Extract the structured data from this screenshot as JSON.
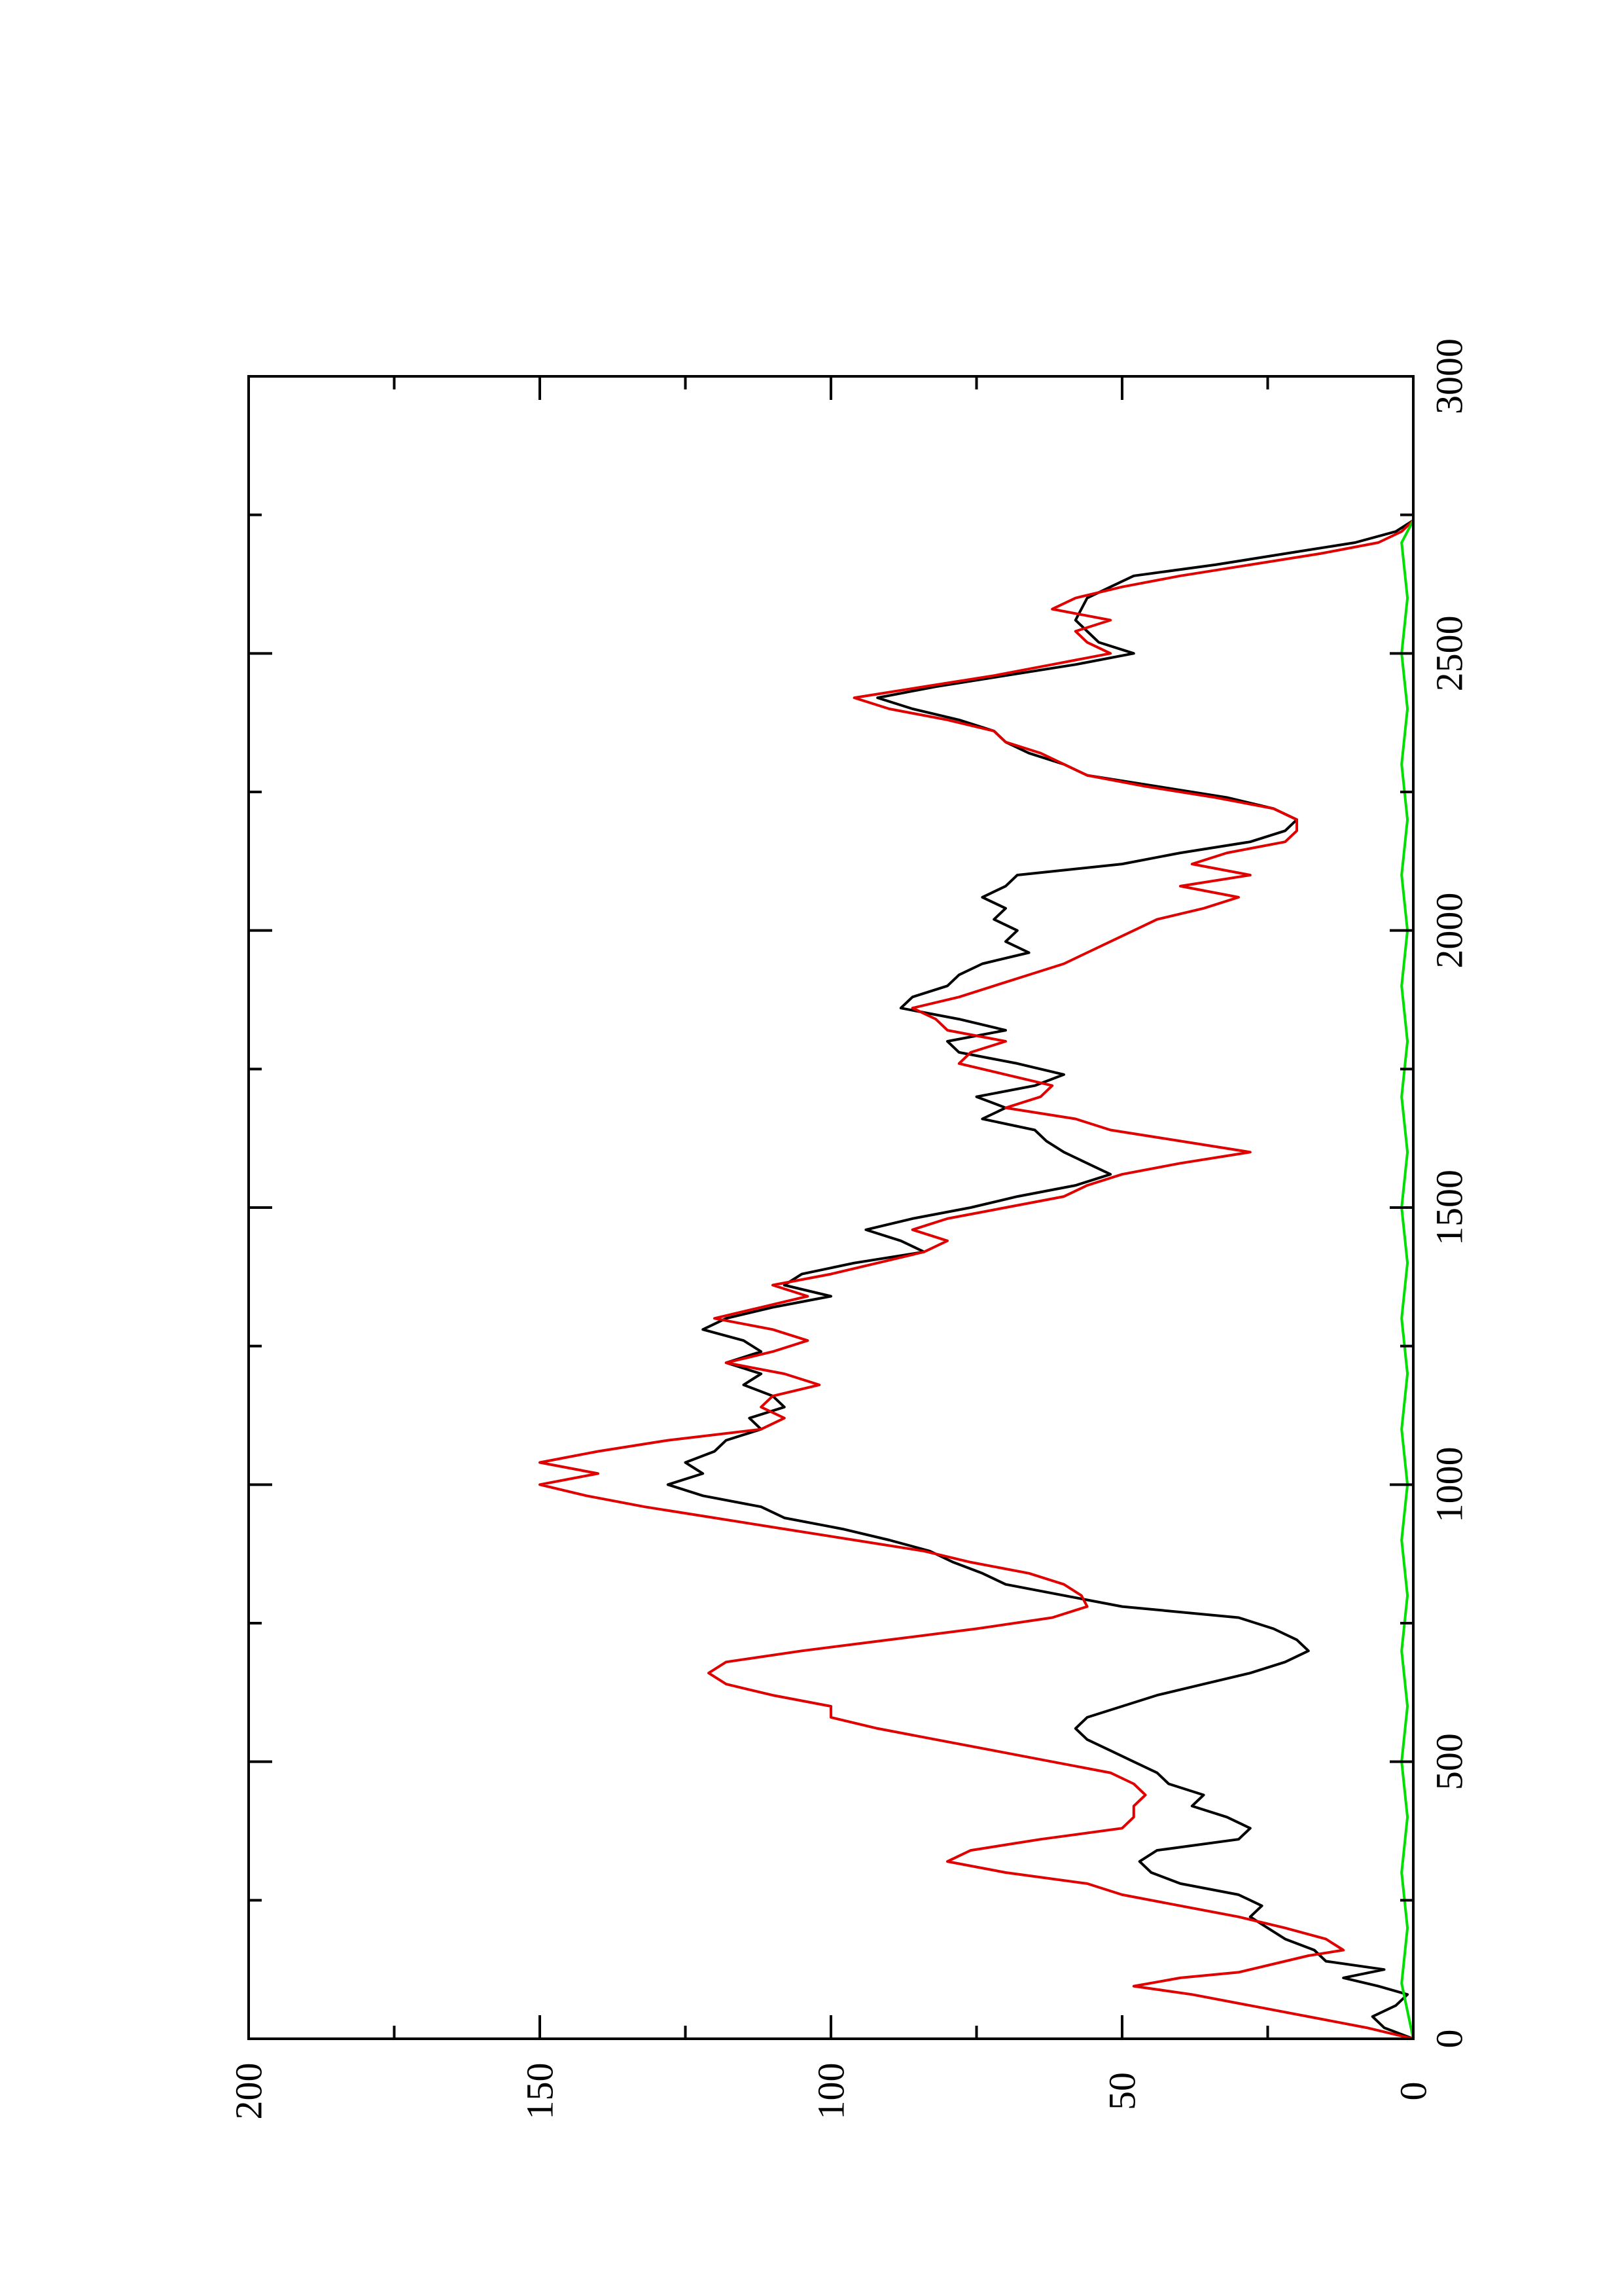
{
  "chart_data": {
    "type": "line",
    "title": "",
    "xlabel": "",
    "ylabel": "",
    "xlim": [
      0,
      3000
    ],
    "ylim": [
      0,
      200
    ],
    "x_ticks_major": [
      0,
      500,
      1000,
      1500,
      2000,
      2500,
      3000
    ],
    "x_ticks_minor": [
      250,
      750,
      1250,
      1750,
      2250,
      2750
    ],
    "y_ticks_major": [
      0,
      50,
      100,
      150,
      200
    ],
    "y_ticks_minor": [
      25,
      75,
      125,
      175
    ],
    "x_tick_labels": [
      "0",
      "500",
      "1000",
      "1500",
      "2000",
      "2500",
      "3000"
    ],
    "y_tick_labels": [
      "0",
      "50",
      "100",
      "150",
      "200"
    ],
    "grid": false,
    "legend": "none",
    "rotation": "rotated 90 degrees counter-clockwise on the page",
    "series": [
      {
        "color": "#000000",
        "points": [
          [
            0,
            0
          ],
          [
            20,
            5
          ],
          [
            40,
            7
          ],
          [
            60,
            3
          ],
          [
            80,
            1
          ],
          [
            95,
            6
          ],
          [
            110,
            12
          ],
          [
            125,
            5
          ],
          [
            140,
            15
          ],
          [
            160,
            17
          ],
          [
            180,
            22
          ],
          [
            200,
            25
          ],
          [
            220,
            28
          ],
          [
            240,
            26
          ],
          [
            260,
            30
          ],
          [
            280,
            40
          ],
          [
            300,
            45
          ],
          [
            320,
            47
          ],
          [
            340,
            44
          ],
          [
            360,
            30
          ],
          [
            380,
            28
          ],
          [
            400,
            32
          ],
          [
            420,
            38
          ],
          [
            440,
            36
          ],
          [
            460,
            42
          ],
          [
            480,
            44
          ],
          [
            500,
            48
          ],
          [
            520,
            52
          ],
          [
            540,
            56
          ],
          [
            560,
            58
          ],
          [
            580,
            56
          ],
          [
            600,
            50
          ],
          [
            620,
            44
          ],
          [
            640,
            36
          ],
          [
            660,
            28
          ],
          [
            680,
            22
          ],
          [
            700,
            18
          ],
          [
            720,
            20
          ],
          [
            740,
            24
          ],
          [
            760,
            30
          ],
          [
            780,
            50
          ],
          [
            800,
            60
          ],
          [
            820,
            70
          ],
          [
            840,
            74
          ],
          [
            860,
            79
          ],
          [
            880,
            83
          ],
          [
            900,
            90
          ],
          [
            920,
            98
          ],
          [
            940,
            108
          ],
          [
            960,
            112
          ],
          [
            980,
            122
          ],
          [
            1000,
            128
          ],
          [
            1020,
            122
          ],
          [
            1040,
            125
          ],
          [
            1060,
            120
          ],
          [
            1080,
            118
          ],
          [
            1100,
            112
          ],
          [
            1120,
            114
          ],
          [
            1140,
            108
          ],
          [
            1160,
            110
          ],
          [
            1180,
            115
          ],
          [
            1200,
            112
          ],
          [
            1220,
            118
          ],
          [
            1240,
            112
          ],
          [
            1260,
            115
          ],
          [
            1280,
            122
          ],
          [
            1300,
            118
          ],
          [
            1320,
            110
          ],
          [
            1340,
            100
          ],
          [
            1360,
            108
          ],
          [
            1380,
            105
          ],
          [
            1400,
            96
          ],
          [
            1420,
            84
          ],
          [
            1440,
            88
          ],
          [
            1460,
            94
          ],
          [
            1480,
            86
          ],
          [
            1500,
            76
          ],
          [
            1520,
            68
          ],
          [
            1540,
            58
          ],
          [
            1560,
            52
          ],
          [
            1580,
            56
          ],
          [
            1600,
            60
          ],
          [
            1620,
            63
          ],
          [
            1640,
            65
          ],
          [
            1660,
            74
          ],
          [
            1680,
            70
          ],
          [
            1700,
            75
          ],
          [
            1720,
            65
          ],
          [
            1740,
            60
          ],
          [
            1760,
            68
          ],
          [
            1780,
            78
          ],
          [
            1800,
            80
          ],
          [
            1820,
            70
          ],
          [
            1840,
            78
          ],
          [
            1860,
            88
          ],
          [
            1880,
            86
          ],
          [
            1900,
            80
          ],
          [
            1920,
            78
          ],
          [
            1940,
            74
          ],
          [
            1960,
            66
          ],
          [
            1980,
            70
          ],
          [
            2000,
            68
          ],
          [
            2020,
            72
          ],
          [
            2040,
            70
          ],
          [
            2060,
            74
          ],
          [
            2080,
            70
          ],
          [
            2100,
            68
          ],
          [
            2120,
            50
          ],
          [
            2140,
            40
          ],
          [
            2160,
            28
          ],
          [
            2180,
            22
          ],
          [
            2200,
            20
          ],
          [
            2220,
            24
          ],
          [
            2240,
            32
          ],
          [
            2260,
            44
          ],
          [
            2280,
            56
          ],
          [
            2300,
            60
          ],
          [
            2320,
            66
          ],
          [
            2340,
            70
          ],
          [
            2360,
            72
          ],
          [
            2380,
            78
          ],
          [
            2400,
            86
          ],
          [
            2420,
            92
          ],
          [
            2440,
            82
          ],
          [
            2460,
            70
          ],
          [
            2480,
            58
          ],
          [
            2500,
            48
          ],
          [
            2520,
            54
          ],
          [
            2540,
            56
          ],
          [
            2560,
            58
          ],
          [
            2580,
            57
          ],
          [
            2600,
            56
          ],
          [
            2620,
            52
          ],
          [
            2640,
            48
          ],
          [
            2660,
            34
          ],
          [
            2680,
            22
          ],
          [
            2700,
            10
          ],
          [
            2720,
            3
          ],
          [
            2740,
            0
          ]
        ]
      },
      {
        "color": "#e00000",
        "points": [
          [
            0,
            0
          ],
          [
            20,
            8
          ],
          [
            40,
            18
          ],
          [
            60,
            28
          ],
          [
            80,
            38
          ],
          [
            95,
            48
          ],
          [
            110,
            40
          ],
          [
            120,
            30
          ],
          [
            140,
            22
          ],
          [
            150,
            18
          ],
          [
            160,
            12
          ],
          [
            180,
            15
          ],
          [
            200,
            22
          ],
          [
            220,
            30
          ],
          [
            240,
            40
          ],
          [
            260,
            50
          ],
          [
            280,
            56
          ],
          [
            300,
            70
          ],
          [
            320,
            80
          ],
          [
            340,
            76
          ],
          [
            360,
            64
          ],
          [
            380,
            50
          ],
          [
            400,
            48
          ],
          [
            420,
            48
          ],
          [
            440,
            46
          ],
          [
            460,
            48
          ],
          [
            480,
            52
          ],
          [
            500,
            62
          ],
          [
            520,
            72
          ],
          [
            540,
            82
          ],
          [
            560,
            92
          ],
          [
            580,
            100
          ],
          [
            600,
            100
          ],
          [
            620,
            110
          ],
          [
            640,
            118
          ],
          [
            660,
            121
          ],
          [
            680,
            118
          ],
          [
            700,
            105
          ],
          [
            720,
            90
          ],
          [
            740,
            75
          ],
          [
            760,
            62
          ],
          [
            780,
            56
          ],
          [
            800,
            57
          ],
          [
            820,
            60
          ],
          [
            840,
            66
          ],
          [
            860,
            76
          ],
          [
            880,
            84
          ],
          [
            900,
            96
          ],
          [
            920,
            108
          ],
          [
            940,
            120
          ],
          [
            960,
            132
          ],
          [
            980,
            142
          ],
          [
            1000,
            150
          ],
          [
            1020,
            140
          ],
          [
            1040,
            150
          ],
          [
            1060,
            140
          ],
          [
            1080,
            128
          ],
          [
            1100,
            112
          ],
          [
            1120,
            108
          ],
          [
            1140,
            112
          ],
          [
            1160,
            110
          ],
          [
            1180,
            102
          ],
          [
            1200,
            108
          ],
          [
            1220,
            118
          ],
          [
            1240,
            110
          ],
          [
            1260,
            104
          ],
          [
            1280,
            110
          ],
          [
            1300,
            120
          ],
          [
            1320,
            112
          ],
          [
            1340,
            104
          ],
          [
            1360,
            110
          ],
          [
            1380,
            100
          ],
          [
            1400,
            92
          ],
          [
            1420,
            84
          ],
          [
            1440,
            80
          ],
          [
            1460,
            86
          ],
          [
            1480,
            80
          ],
          [
            1500,
            70
          ],
          [
            1520,
            60
          ],
          [
            1540,
            56
          ],
          [
            1560,
            50
          ],
          [
            1580,
            40
          ],
          [
            1600,
            28
          ],
          [
            1620,
            40
          ],
          [
            1640,
            52
          ],
          [
            1660,
            58
          ],
          [
            1680,
            70
          ],
          [
            1700,
            64
          ],
          [
            1720,
            62
          ],
          [
            1740,
            70
          ],
          [
            1760,
            78
          ],
          [
            1780,
            76
          ],
          [
            1800,
            70
          ],
          [
            1820,
            80
          ],
          [
            1840,
            82
          ],
          [
            1860,
            86
          ],
          [
            1880,
            78
          ],
          [
            1900,
            72
          ],
          [
            1920,
            66
          ],
          [
            1940,
            60
          ],
          [
            1960,
            56
          ],
          [
            1980,
            52
          ],
          [
            2000,
            48
          ],
          [
            2020,
            44
          ],
          [
            2040,
            36
          ],
          [
            2060,
            30
          ],
          [
            2080,
            40
          ],
          [
            2100,
            28
          ],
          [
            2120,
            38
          ],
          [
            2140,
            32
          ],
          [
            2160,
            22
          ],
          [
            2180,
            20
          ],
          [
            2200,
            20
          ],
          [
            2220,
            24
          ],
          [
            2240,
            34
          ],
          [
            2260,
            46
          ],
          [
            2280,
            56
          ],
          [
            2300,
            60
          ],
          [
            2320,
            64
          ],
          [
            2340,
            70
          ],
          [
            2360,
            72
          ],
          [
            2380,
            80
          ],
          [
            2400,
            90
          ],
          [
            2420,
            96
          ],
          [
            2440,
            84
          ],
          [
            2460,
            72
          ],
          [
            2480,
            62
          ],
          [
            2500,
            52
          ],
          [
            2520,
            56
          ],
          [
            2540,
            58
          ],
          [
            2560,
            52
          ],
          [
            2580,
            62
          ],
          [
            2600,
            58
          ],
          [
            2620,
            50
          ],
          [
            2640,
            40
          ],
          [
            2660,
            28
          ],
          [
            2680,
            16
          ],
          [
            2700,
            6
          ],
          [
            2720,
            2
          ],
          [
            2740,
            0
          ]
        ]
      },
      {
        "color": "#00e000",
        "points": [
          [
            0,
            0
          ],
          [
            100,
            2
          ],
          [
            200,
            1
          ],
          [
            300,
            2
          ],
          [
            400,
            1
          ],
          [
            500,
            2
          ],
          [
            600,
            1
          ],
          [
            700,
            2
          ],
          [
            800,
            1
          ],
          [
            900,
            2
          ],
          [
            1000,
            1
          ],
          [
            1100,
            2
          ],
          [
            1200,
            1
          ],
          [
            1300,
            2
          ],
          [
            1400,
            1
          ],
          [
            1500,
            2
          ],
          [
            1600,
            1
          ],
          [
            1700,
            2
          ],
          [
            1800,
            1
          ],
          [
            1900,
            2
          ],
          [
            2000,
            1
          ],
          [
            2100,
            2
          ],
          [
            2200,
            1
          ],
          [
            2300,
            2
          ],
          [
            2400,
            1
          ],
          [
            2500,
            2
          ],
          [
            2600,
            1
          ],
          [
            2700,
            2
          ],
          [
            2740,
            0
          ]
        ]
      }
    ]
  }
}
